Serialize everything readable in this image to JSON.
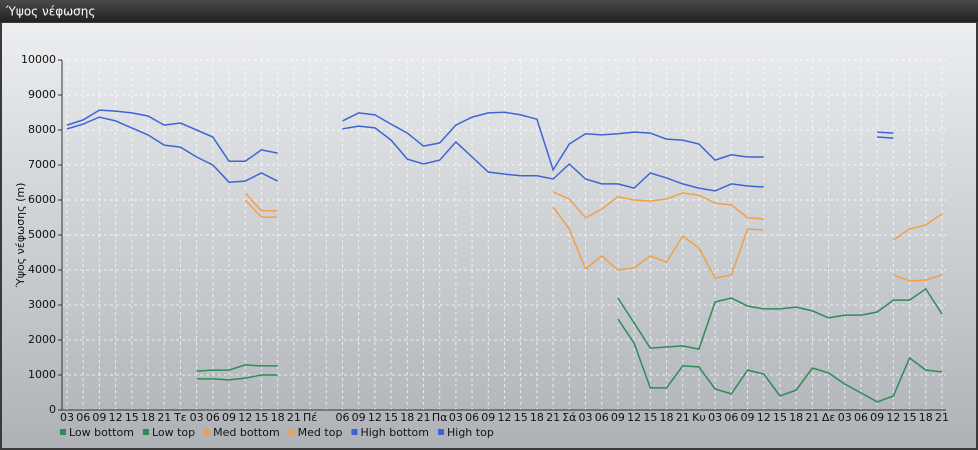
{
  "chart_data": {
    "type": "line",
    "title": "Ύψος νέφωσης",
    "y_label": "Ύψος νέφωσης (m)",
    "categories": [
      "03",
      "06",
      "09",
      "12",
      "15",
      "18",
      "21",
      "Τε",
      "03",
      "06",
      "09",
      "12",
      "15",
      "18",
      "21",
      "Πέ",
      null,
      "06",
      "09",
      "12",
      "15",
      "18",
      "21",
      "Πα",
      "03",
      "06",
      "09",
      "12",
      "15",
      "18",
      "21",
      "Σά",
      "03",
      "06",
      "09",
      "12",
      "15",
      "18",
      "21",
      "Κυ",
      "03",
      "06",
      "09",
      "12",
      "15",
      "18",
      "21",
      "Δε",
      "03",
      "06",
      "09",
      "12",
      "15",
      "18",
      "21"
    ],
    "ylim": [
      0,
      10000
    ],
    "yticks": [
      0,
      1000,
      2000,
      3000,
      4000,
      5000,
      6000,
      7000,
      8000,
      9000,
      10000
    ],
    "grid": true,
    "series": [
      {
        "name": "Low bottom",
        "color": "#2e8b57",
        "values": [
          null,
          null,
          null,
          null,
          null,
          null,
          null,
          null,
          890,
          890,
          860,
          910,
          1000,
          1000,
          null,
          null,
          null,
          null,
          null,
          null,
          null,
          null,
          null,
          null,
          null,
          null,
          null,
          null,
          null,
          null,
          null,
          null,
          null,
          null,
          2600,
          1910,
          630,
          630,
          1260,
          1230,
          600,
          460,
          1140,
          1030,
          400,
          570,
          1200,
          1060,
          740,
          490,
          230,
          400,
          1490,
          1140,
          1090
        ]
      },
      {
        "name": "Low top",
        "color": "#2e8b57",
        "values": [
          null,
          null,
          null,
          null,
          null,
          null,
          null,
          null,
          1110,
          1140,
          1140,
          1290,
          1260,
          1260,
          null,
          null,
          null,
          null,
          null,
          null,
          null,
          null,
          null,
          null,
          null,
          null,
          null,
          null,
          null,
          null,
          null,
          null,
          null,
          null,
          3200,
          2490,
          1770,
          1800,
          1830,
          1740,
          3090,
          3200,
          2970,
          2890,
          2890,
          2940,
          2830,
          2630,
          2710,
          2710,
          2800,
          3140,
          3140,
          3460,
          2740
        ]
      },
      {
        "name": "Med bottom",
        "color": "#f0a04b",
        "values": [
          null,
          null,
          null,
          null,
          null,
          null,
          null,
          null,
          null,
          null,
          null,
          6000,
          5510,
          5510,
          null,
          null,
          null,
          null,
          null,
          null,
          null,
          null,
          null,
          null,
          null,
          null,
          null,
          null,
          null,
          null,
          5800,
          5170,
          4030,
          4400,
          4000,
          4060,
          4400,
          4230,
          4970,
          4630,
          3770,
          3860,
          5170,
          5140,
          null,
          null,
          null,
          null,
          null,
          null,
          null,
          3860,
          3690,
          3710,
          3860
        ]
      },
      {
        "name": "Med top",
        "color": "#f0a04b",
        "values": [
          null,
          null,
          null,
          null,
          null,
          null,
          null,
          null,
          null,
          null,
          null,
          6200,
          5690,
          5690,
          null,
          null,
          null,
          null,
          null,
          null,
          null,
          null,
          null,
          null,
          null,
          null,
          null,
          null,
          null,
          null,
          6230,
          6030,
          5490,
          5740,
          6090,
          6000,
          5970,
          6030,
          6200,
          6140,
          5910,
          5860,
          5490,
          5460,
          null,
          null,
          null,
          null,
          null,
          null,
          null,
          4860,
          5170,
          5290,
          5600
        ]
      },
      {
        "name": "High bottom",
        "color": "#3e64d4",
        "values": [
          8030,
          8170,
          8370,
          8260,
          8060,
          7860,
          7570,
          7510,
          7230,
          7000,
          6510,
          6540,
          6770,
          6540,
          null,
          null,
          null,
          8030,
          8110,
          8060,
          7710,
          7170,
          7030,
          7140,
          7660,
          7230,
          6800,
          6740,
          6690,
          6690,
          6600,
          7030,
          6600,
          6460,
          6460,
          6340,
          6770,
          6630,
          6460,
          6340,
          6260,
          6460,
          6400,
          6370,
          null,
          null,
          null,
          null,
          null,
          null,
          7800,
          7770,
          null,
          null,
          null
        ]
      },
      {
        "name": "High top",
        "color": "#3e64d4",
        "values": [
          8140,
          8290,
          8570,
          8540,
          8490,
          8400,
          8140,
          8200,
          8000,
          7800,
          7110,
          7110,
          7430,
          7340,
          null,
          null,
          null,
          8260,
          8490,
          8430,
          8170,
          7910,
          7540,
          7630,
          8140,
          8370,
          8490,
          8510,
          8430,
          8310,
          6860,
          7600,
          7890,
          7860,
          7890,
          7940,
          7910,
          7740,
          7710,
          7600,
          7140,
          7290,
          7230,
          7230,
          null,
          null,
          null,
          null,
          null,
          null,
          7940,
          7910,
          null,
          null,
          null
        ]
      }
    ]
  }
}
